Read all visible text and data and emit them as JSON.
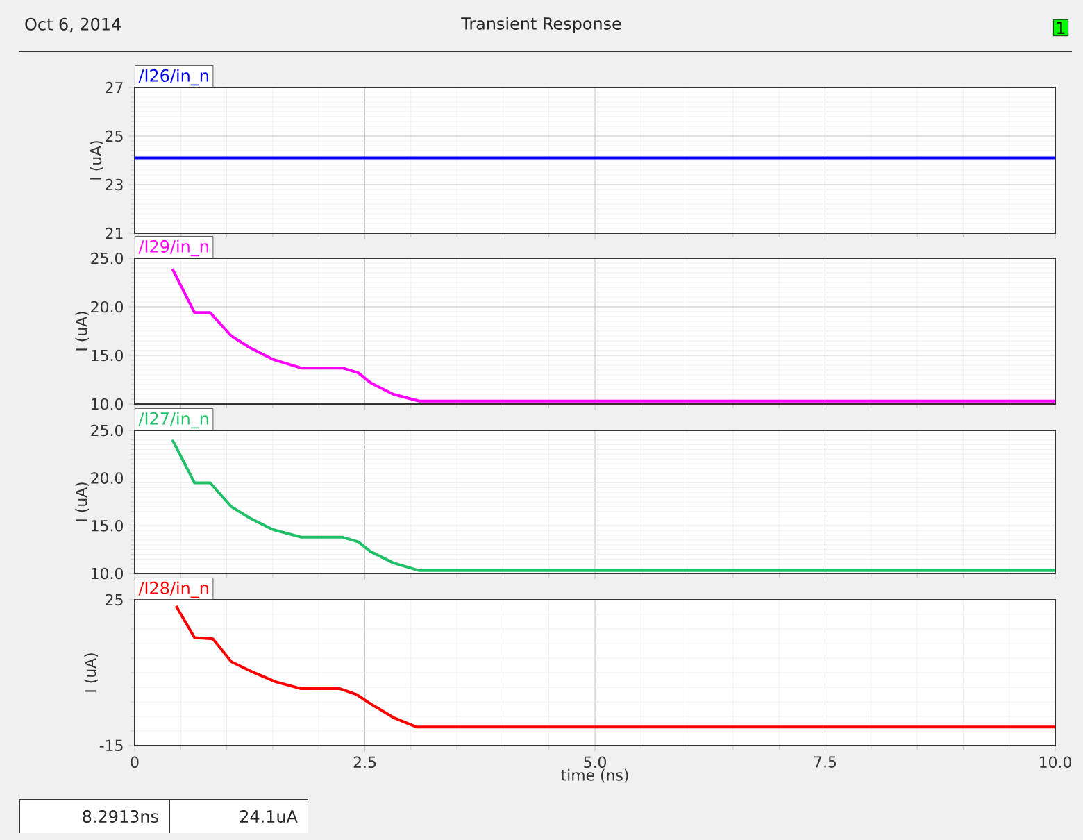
{
  "chart_data": [
    {
      "type": "line",
      "title": "Transient Response",
      "annotations": [
        "Oct 6, 2014",
        "1"
      ],
      "ylabel": "I (uA)",
      "grid": true,
      "legend": "top left",
      "tick_labels": "y",
      "xlim": [
        0,
        10
      ],
      "xticks": [
        0,
        2.5,
        5,
        7.5,
        10
      ],
      "ylim": [
        21,
        27
      ],
      "yticks": [
        21,
        23,
        25,
        27
      ],
      "series": [
        {
          "name": "/I26/in_n",
          "color": "#0000ff",
          "x": [
            0,
            10
          ],
          "values": [
            24.1,
            24.1
          ]
        }
      ]
    },
    {
      "type": "line",
      "ylabel": "I (uA)",
      "grid": true,
      "legend": "top left",
      "tick_labels": "y",
      "xlim": [
        0,
        10
      ],
      "xticks": [
        0,
        2.5,
        5,
        7.5,
        10
      ],
      "ylim": [
        10,
        25
      ],
      "yticks": [
        {
          "value": 10,
          "label": "10.0"
        },
        {
          "value": 15,
          "label": "15.0"
        },
        {
          "value": 20,
          "label": "20.0"
        },
        {
          "value": 25,
          "label": "25.0"
        }
      ],
      "series": [
        {
          "name": "/I29/in_n",
          "color": "#ff00ff",
          "x": [
            0.41,
            0.65,
            0.82,
            1.05,
            1.25,
            1.5,
            1.81,
            2.26,
            2.43,
            2.56,
            2.81,
            3.09,
            10
          ],
          "values": [
            23.9,
            19.4,
            19.4,
            17.0,
            15.8,
            14.6,
            13.7,
            13.7,
            13.2,
            12.2,
            11.0,
            10.3,
            10.3
          ]
        }
      ]
    },
    {
      "type": "line",
      "ylabel": "I (uA)",
      "grid": true,
      "legend": "top left",
      "tick_labels": "y",
      "xlim": [
        0,
        10
      ],
      "xticks": [
        0,
        2.5,
        5,
        7.5,
        10
      ],
      "ylim": [
        10,
        25
      ],
      "yticks": [
        {
          "value": 10,
          "label": "10.0"
        },
        {
          "value": 15,
          "label": "15.0"
        },
        {
          "value": 20,
          "label": "20.0"
        },
        {
          "value": 25,
          "label": "25.0"
        }
      ],
      "series": [
        {
          "name": "/I27/in_n",
          "color": "#20c068",
          "x": [
            0.41,
            0.65,
            0.82,
            1.05,
            1.25,
            1.5,
            1.81,
            2.26,
            2.43,
            2.56,
            2.81,
            3.09,
            10
          ],
          "values": [
            24.0,
            19.5,
            19.5,
            17.0,
            15.8,
            14.6,
            13.8,
            13.8,
            13.3,
            12.3,
            11.1,
            10.3,
            10.3
          ]
        }
      ]
    },
    {
      "type": "line",
      "annotations": [
        "8.2913ns",
        "24.1uA"
      ],
      "xlabel": "time (ns)",
      "ylabel": "I (uA)",
      "grid": true,
      "legend": "top left",
      "xlim": [
        0,
        10
      ],
      "xticks": [
        0,
        2.5,
        {
          "value": 5,
          "label": "5.0"
        },
        7.5,
        {
          "value": 10,
          "label": "10.0"
        }
      ],
      "ylim": [
        -15,
        25
      ],
      "yticks": [
        -15,
        25
      ],
      "series": [
        {
          "name": "/I28/in_n",
          "color": "#ff0000",
          "x": [
            0.45,
            0.65,
            0.85,
            1.05,
            1.28,
            1.53,
            1.81,
            2.23,
            2.41,
            2.56,
            2.81,
            3.06,
            10
          ],
          "values": [
            23.3,
            14.6,
            14.3,
            8.0,
            5.2,
            2.5,
            0.6,
            0.6,
            -1.0,
            -3.5,
            -7.3,
            -9.9,
            -9.9
          ]
        }
      ]
    }
  ]
}
